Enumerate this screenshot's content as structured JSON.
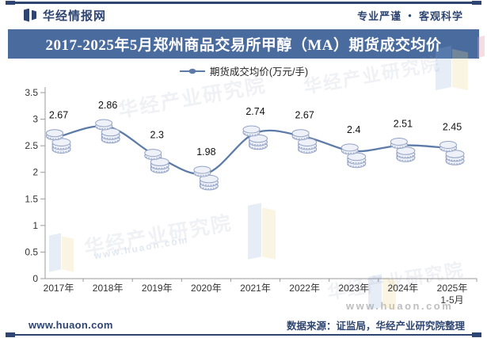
{
  "header": {
    "brand": "华经情报网",
    "slogan_left": "专业严谨",
    "slogan_dot": "●",
    "slogan_right": "客观科学"
  },
  "title": {
    "text": "2017-2025年5月郑州商品交易所甲醇（MA）期货成交均价"
  },
  "chart_data": {
    "type": "line",
    "title": "2017-2025年5月郑州商品交易所甲醇（MA）期货成交均价",
    "legend": "期货成交均价(万元/手)",
    "legend_position": "top",
    "categories": [
      "2017年",
      "2018年",
      "2019年",
      "2020年",
      "2021年",
      "2022年",
      "2023年",
      "2024年",
      "2025年1-5月"
    ],
    "category_lines": [
      [
        "2017年"
      ],
      [
        "2018年"
      ],
      [
        "2019年"
      ],
      [
        "2020年"
      ],
      [
        "2021年"
      ],
      [
        "2022年"
      ],
      [
        "2023年"
      ],
      [
        "2024年"
      ],
      [
        "2025年",
        "1-5月"
      ]
    ],
    "values": [
      2.67,
      2.86,
      2.3,
      1.98,
      2.74,
      2.67,
      2.4,
      2.51,
      2.45
    ],
    "unit": "万元/手",
    "xlabel": "",
    "ylabel": "",
    "ylim": [
      0,
      3.5
    ],
    "yticks": [
      0,
      0.5,
      1,
      1.5,
      2,
      2.5,
      3,
      3.5
    ],
    "grid": false,
    "line_color": "#5d7ba9",
    "marker": "coin-stack"
  },
  "footer": {
    "site": "www.huaon.com",
    "source": "数据来源：证监局，华经产业研究院整理"
  },
  "watermark": {
    "text": "华经产业研究院",
    "url": "www.huaon.com"
  },
  "colors": {
    "navy": "#2e4571",
    "banner_blue": "#4a6b9e",
    "line_blue": "#5d7ba9",
    "axis_gray": "#9b9b9b",
    "marker_fill": "#eef1f8",
    "marker_stroke": "#93a2c4"
  }
}
